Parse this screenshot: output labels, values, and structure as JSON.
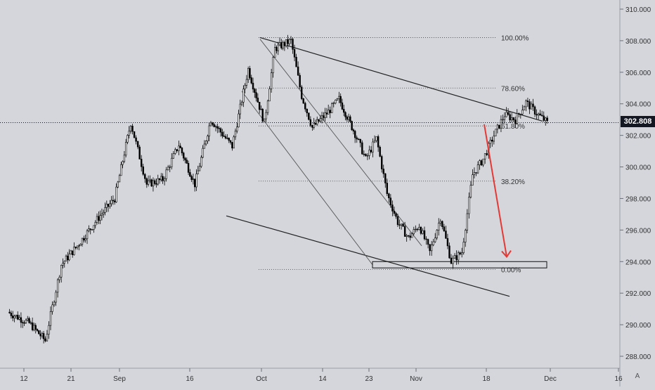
{
  "chart_data": {
    "type": "line",
    "subtype": "candlestick",
    "title": "",
    "xlabel": "",
    "ylabel": "",
    "ylim": [
      287.3,
      310.4
    ],
    "y_ticks": [
      "310.000",
      "308.000",
      "306.000",
      "304.000",
      "302.000",
      "300.000",
      "298.000",
      "296.000",
      "294.000",
      "292.000",
      "290.000",
      "288.000"
    ],
    "x_ticks": [
      "12",
      "21",
      "Sep",
      "16",
      "Oct",
      "14",
      "23",
      "Nov",
      "18",
      "Dec",
      "16"
    ],
    "last_price": "302.808",
    "grid": false,
    "price_path_x": [
      "Aug 9",
      "Aug 13",
      "Aug 16",
      "Aug 19",
      "Aug 22",
      "Aug 26",
      "Aug 29",
      "Sep 1",
      "Sep 4",
      "Sep 7",
      "Sep 10",
      "Sep 13",
      "Sep 16",
      "Sep 20",
      "Sep 23",
      "Sep 26",
      "Sep 28",
      "Oct 1",
      "Oct 3",
      "Oct 5",
      "Oct 8",
      "Oct 10",
      "Oct 13",
      "Oct 15",
      "Oct 17",
      "Oct 19",
      "Oct 21",
      "Oct 23",
      "Oct 25",
      "Oct 27",
      "Oct 29",
      "Oct 31",
      "Nov 2",
      "Nov 4",
      "Nov 6",
      "Nov 8",
      "Nov 10",
      "Nov 12",
      "Nov 14",
      "Nov 16",
      "Nov 18"
    ],
    "price_path_y": [
      290.8,
      290.1,
      289.0,
      293.8,
      295.0,
      296.8,
      298.0,
      302.8,
      298.9,
      299.2,
      301.4,
      298.9,
      303.0,
      301.3,
      306.2,
      302.8,
      307.5,
      308.0,
      304.5,
      302.5,
      303.5,
      304.3,
      302.1,
      300.5,
      301.8,
      298.3,
      296.5,
      295.5,
      296.3,
      294.6,
      296.8,
      294.0,
      294.6,
      299.5,
      300.5,
      302.0,
      303.3,
      303.0,
      304.1,
      303.4,
      302.8
    ],
    "drawings": {
      "fibonacci_levels": [
        {
          "label": "100.00%",
          "price": 308.2
        },
        {
          "label": "78.60%",
          "price": 305.0
        },
        {
          "label": "61.80%",
          "price": 302.6
        },
        {
          "label": "38.20%",
          "price": 299.1
        },
        {
          "label": "0.00%",
          "price": 293.5
        }
      ],
      "target_zone": {
        "price_low": 293.6,
        "price_high": 294.0
      },
      "forecast_arrow": {
        "from_price": 302.7,
        "to_price": 294.3,
        "color": "#e53935"
      }
    },
    "colors": {
      "background": "#d4d6db",
      "candles": "#000000",
      "arrow": "#e53935",
      "price_tag": "#131722"
    }
  },
  "ui": {
    "auto_label": "A"
  }
}
